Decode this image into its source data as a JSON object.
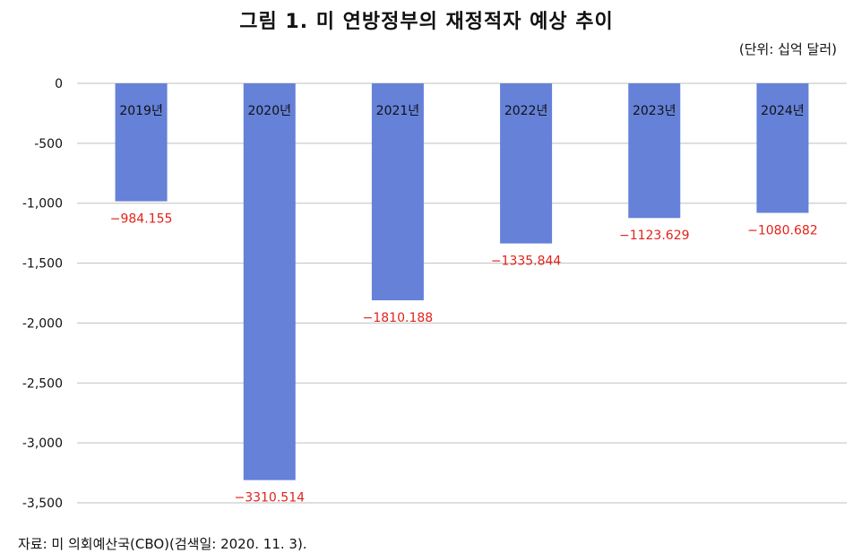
{
  "title": "그림 1. 미 연방정부의 재정적자 예상 추이",
  "unit": "(단위: 십억 달러)",
  "source": "자료: 미 의회예산국(CBO)(검색일: 2020. 11. 3).",
  "colors": {
    "bar": "#6581d8",
    "label": "#e3231b",
    "grid": "#bfbfbf"
  },
  "chart_data": {
    "type": "bar",
    "categories": [
      "2019년",
      "2020년",
      "2021년",
      "2022년",
      "2023년",
      "2024년"
    ],
    "values": [
      -984.155,
      -3310.514,
      -1810.188,
      -1335.844,
      -1123.629,
      -1080.682
    ],
    "value_labels": [
      "−984.155",
      "−3310.514",
      "−1810.188",
      "−1335.844",
      "−1123.629",
      "−1080.682"
    ],
    "ylim": [
      -3500,
      0
    ],
    "yticks": [
      0,
      -500,
      -1000,
      -1500,
      -2000,
      -2500,
      -3000,
      -3500
    ],
    "ytick_labels": [
      "0",
      "-500",
      "-1,000",
      "-1,500",
      "-2,000",
      "-2,500",
      "-3,000",
      "-3,500"
    ],
    "grid": true
  }
}
